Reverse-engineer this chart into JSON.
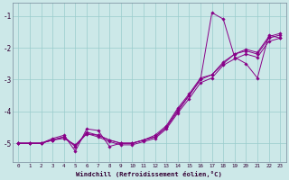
{
  "xlabel": "Windchill (Refroidissement éolien,°C)",
  "background_color": "#cce8e8",
  "line_color": "#880088",
  "grid_color": "#99cccc",
  "xlim": [
    -0.5,
    23.5
  ],
  "ylim": [
    -5.6,
    -0.6
  ],
  "yticks": [
    -5,
    -4,
    -3,
    -2,
    -1
  ],
  "xticks": [
    0,
    1,
    2,
    3,
    4,
    5,
    6,
    7,
    8,
    9,
    10,
    11,
    12,
    13,
    14,
    15,
    16,
    17,
    18,
    19,
    20,
    21,
    22,
    23
  ],
  "series": [
    [
      -5.0,
      -5.0,
      -5.0,
      -4.9,
      -4.85,
      -5.05,
      -4.7,
      -4.75,
      -4.9,
      -5.0,
      -5.0,
      -4.9,
      -4.8,
      -4.5,
      -3.95,
      -3.5,
      -3.0,
      -2.85,
      -2.5,
      -2.2,
      -2.1,
      -2.2,
      -1.7,
      -1.6
    ],
    [
      -5.0,
      -5.0,
      -5.0,
      -4.9,
      -4.8,
      -5.1,
      -4.65,
      -4.75,
      -4.9,
      -5.0,
      -5.0,
      -4.9,
      -4.75,
      -4.45,
      -3.9,
      -3.45,
      -2.95,
      -2.85,
      -2.45,
      -2.2,
      -2.05,
      -2.15,
      -1.65,
      -1.55
    ],
    [
      -5.0,
      -5.0,
      -5.0,
      -4.85,
      -4.75,
      -5.25,
      -4.55,
      -4.6,
      -5.1,
      -5.0,
      -5.0,
      -4.9,
      -4.8,
      -4.5,
      -4.0,
      -3.5,
      -3.0,
      -0.9,
      -1.1,
      -2.3,
      -2.5,
      -2.95,
      -1.6,
      -1.7
    ],
    [
      -5.0,
      -5.0,
      -5.0,
      -4.9,
      -4.8,
      -5.1,
      -4.7,
      -4.8,
      -4.95,
      -5.05,
      -5.05,
      -4.95,
      -4.85,
      -4.55,
      -4.05,
      -3.6,
      -3.1,
      -2.95,
      -2.55,
      -2.35,
      -2.2,
      -2.3,
      -1.8,
      -1.7
    ]
  ]
}
